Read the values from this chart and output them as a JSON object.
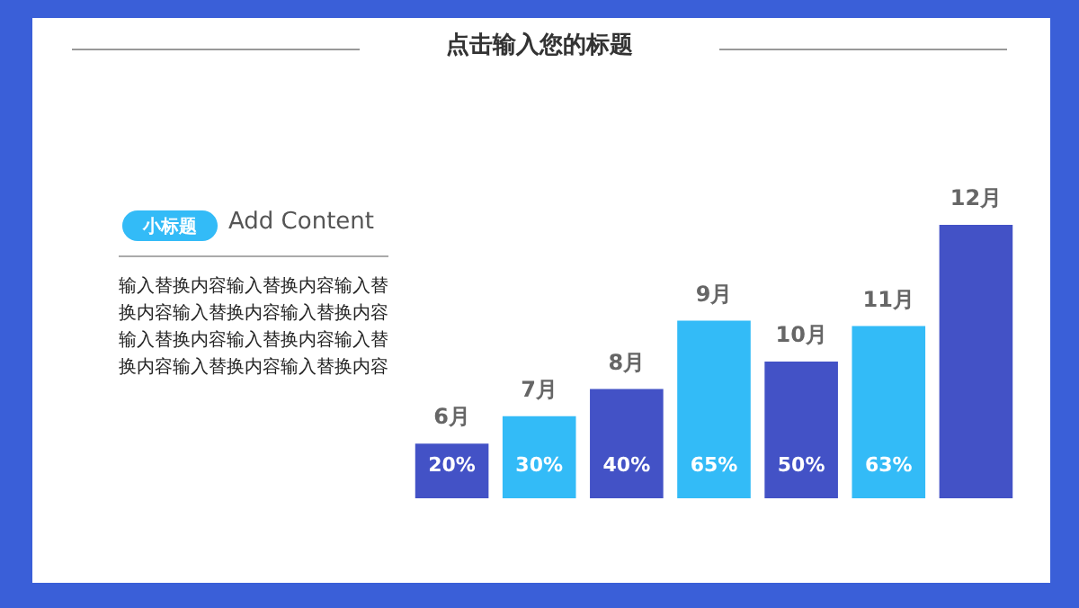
{
  "chart_data": {
    "type": "bar",
    "title": "点击输入您的标题",
    "subtitle": "Add Content",
    "annotations": [
      "小标题",
      "输入替换内容输入替换内容输入替换内容输入替换内容输入替换内容输入替换内容输入替换内容输入替换内容输入替换内容输入替换内容"
    ],
    "categories": [
      "6月",
      "7月",
      "8月",
      "9月",
      "10月",
      "11月",
      "12月"
    ],
    "values": [
      20,
      30,
      40,
      65,
      50,
      63,
      100
    ],
    "colors": [
      "#4352c6",
      "#33bbf7",
      "#4352c6",
      "#33bbf7",
      "#4352c6",
      "#33bbf7",
      "#4352c6"
    ],
    "value_labels": [
      "20%",
      "30%",
      "40%",
      "65%",
      "50%",
      "63%",
      null
    ],
    "legend": false
  }
}
